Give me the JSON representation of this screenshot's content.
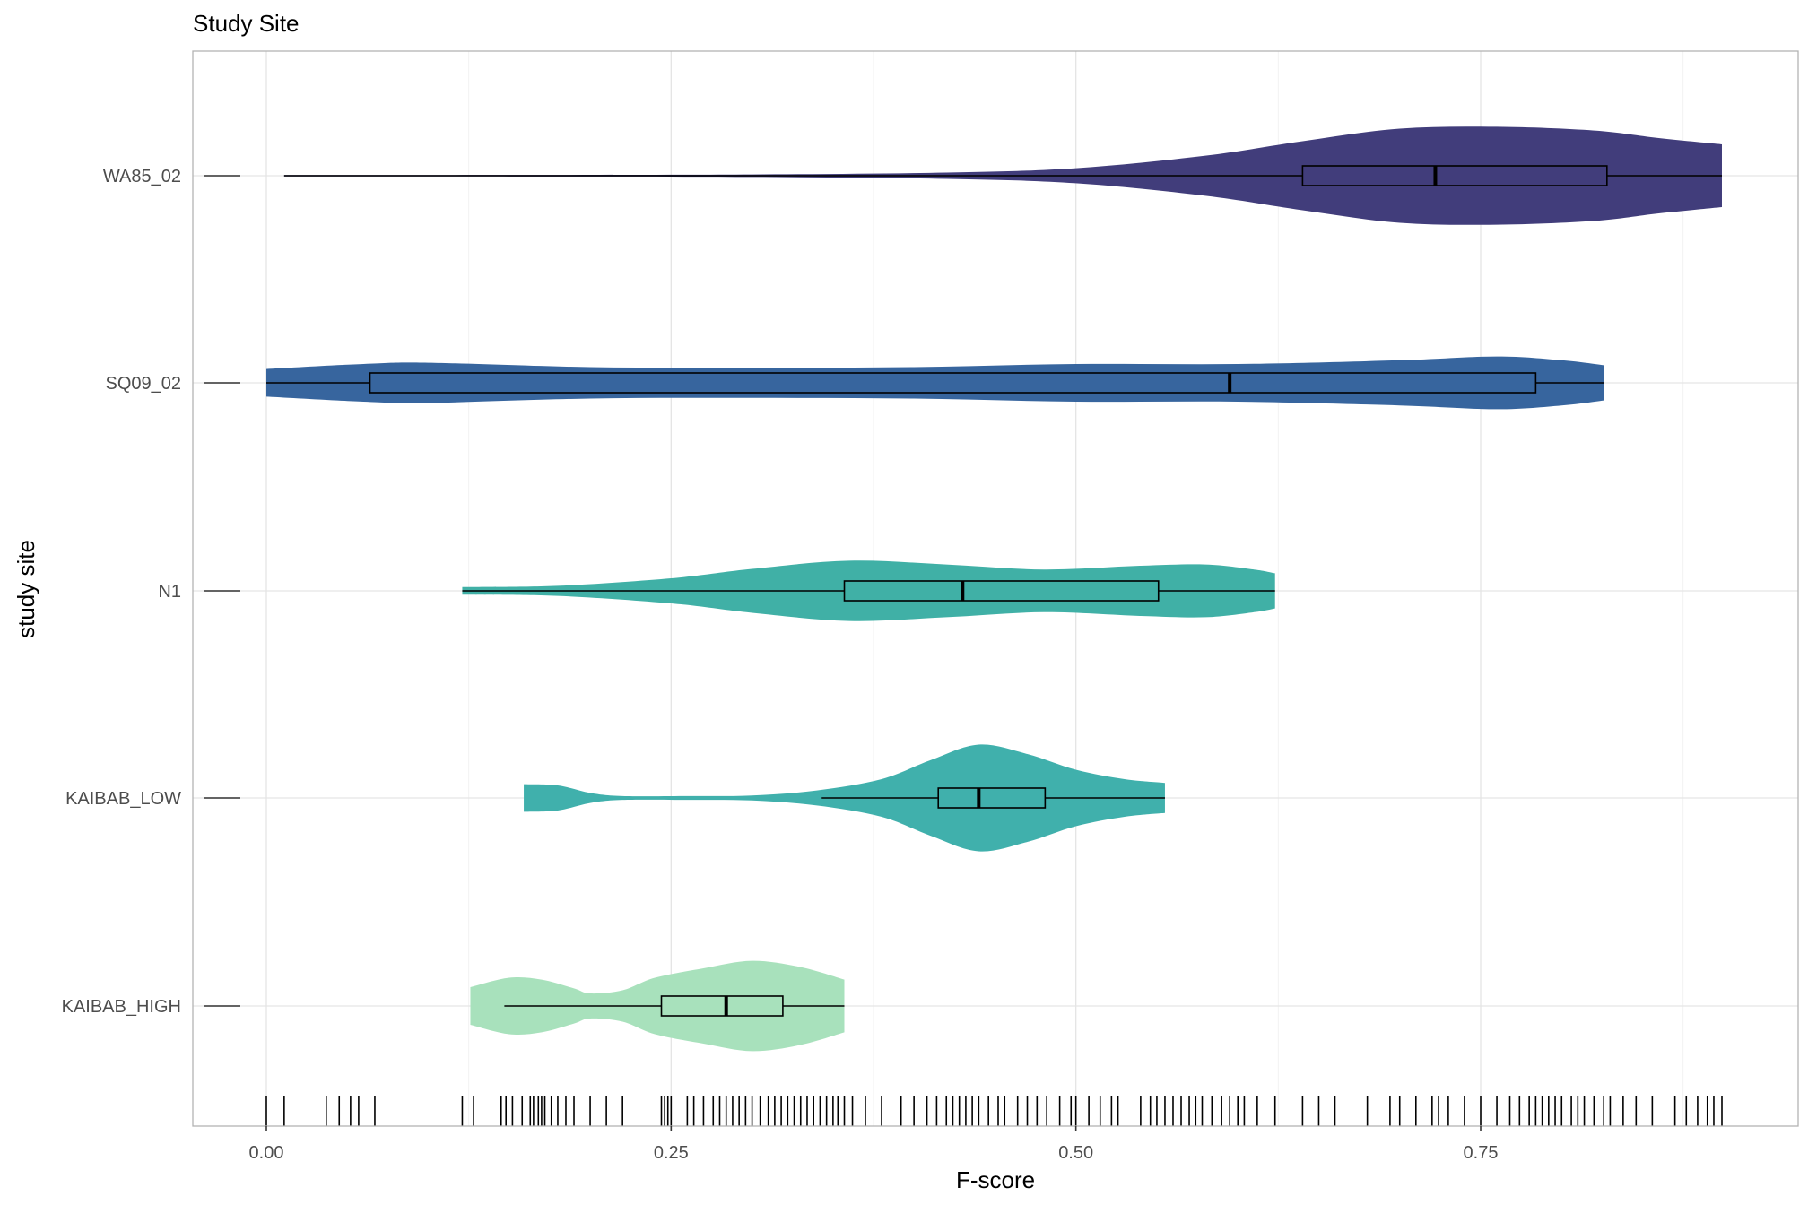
{
  "chart_data": {
    "type": "violin",
    "title": "Study Site",
    "xlabel": "F-score",
    "ylabel": "study site",
    "xlim": [
      -0.045,
      0.945
    ],
    "xticks": [
      "0.00",
      "0.25",
      "0.50",
      "0.75"
    ],
    "xtick_values": [
      0,
      0.25,
      0.5,
      0.75
    ],
    "grid": true,
    "categories": [
      "WA85_02",
      "SQ09_02",
      "N1",
      "KAIBAB_LOW",
      "KAIBAB_HIGH"
    ],
    "series": [
      {
        "name": "WA85_02",
        "color": "#413d7b",
        "box": {
          "min": 0.64,
          "q1": 0.64,
          "median": 0.722,
          "q3": 0.828,
          "max": 0.899
        },
        "whisker_low": 0.011,
        "range": [
          0.011,
          0.899
        ],
        "density": [
          [
            0.011,
            0.01
          ],
          [
            0.15,
            0.012
          ],
          [
            0.3,
            0.02
          ],
          [
            0.42,
            0.05
          ],
          [
            0.5,
            0.12
          ],
          [
            0.58,
            0.32
          ],
          [
            0.64,
            0.55
          ],
          [
            0.7,
            0.75
          ],
          [
            0.76,
            0.78
          ],
          [
            0.82,
            0.72
          ],
          [
            0.86,
            0.6
          ],
          [
            0.899,
            0.5
          ]
        ]
      },
      {
        "name": "SQ09_02",
        "color": "#37659e",
        "box": {
          "q1": 0.064,
          "median": 0.595,
          "q3": 0.784
        },
        "whisker_low": 0.0,
        "whisker_high": 0.826,
        "range": [
          0.0,
          0.826
        ],
        "density": [
          [
            0.0,
            0.22
          ],
          [
            0.06,
            0.3
          ],
          [
            0.1,
            0.32
          ],
          [
            0.2,
            0.25
          ],
          [
            0.3,
            0.24
          ],
          [
            0.4,
            0.25
          ],
          [
            0.5,
            0.3
          ],
          [
            0.6,
            0.3
          ],
          [
            0.7,
            0.36
          ],
          [
            0.76,
            0.42
          ],
          [
            0.8,
            0.36
          ],
          [
            0.826,
            0.28
          ]
        ]
      },
      {
        "name": "N1",
        "color": "#40b0a6",
        "box": {
          "q1": 0.357,
          "median": 0.43,
          "q3": 0.551
        },
        "whisker_low": 0.121,
        "whisker_high": 0.623,
        "range": [
          0.121,
          0.623
        ],
        "density": [
          [
            0.121,
            0.06
          ],
          [
            0.18,
            0.08
          ],
          [
            0.25,
            0.2
          ],
          [
            0.3,
            0.35
          ],
          [
            0.36,
            0.48
          ],
          [
            0.42,
            0.42
          ],
          [
            0.48,
            0.34
          ],
          [
            0.54,
            0.4
          ],
          [
            0.58,
            0.42
          ],
          [
            0.61,
            0.34
          ],
          [
            0.623,
            0.28
          ]
        ]
      },
      {
        "name": "KAIBAB_LOW",
        "color": "#40b0ac",
        "box": {
          "q1": 0.415,
          "median": 0.44,
          "q3": 0.481
        },
        "whisker_low": 0.343,
        "whisker_high": 0.555,
        "range": [
          0.159,
          0.555
        ],
        "density": [
          [
            0.159,
            0.22
          ],
          [
            0.18,
            0.2
          ],
          [
            0.2,
            0.08
          ],
          [
            0.22,
            0.03
          ],
          [
            0.26,
            0.03
          ],
          [
            0.3,
            0.04
          ],
          [
            0.34,
            0.12
          ],
          [
            0.38,
            0.3
          ],
          [
            0.41,
            0.6
          ],
          [
            0.44,
            0.85
          ],
          [
            0.47,
            0.7
          ],
          [
            0.5,
            0.45
          ],
          [
            0.53,
            0.3
          ],
          [
            0.555,
            0.24
          ]
        ]
      },
      {
        "name": "KAIBAB_HIGH",
        "color": "#a8e1bc",
        "box": {
          "q1": 0.244,
          "median": 0.284,
          "q3": 0.319
        },
        "whisker_low": 0.147,
        "whisker_high": 0.357,
        "range": [
          0.126,
          0.357
        ],
        "density": [
          [
            0.126,
            0.3
          ],
          [
            0.15,
            0.45
          ],
          [
            0.17,
            0.42
          ],
          [
            0.19,
            0.28
          ],
          [
            0.2,
            0.2
          ],
          [
            0.22,
            0.25
          ],
          [
            0.24,
            0.45
          ],
          [
            0.27,
            0.6
          ],
          [
            0.3,
            0.72
          ],
          [
            0.33,
            0.62
          ],
          [
            0.357,
            0.42
          ]
        ]
      }
    ],
    "rug": [
      0.0,
      0.011,
      0.037,
      0.045,
      0.052,
      0.057,
      0.067,
      0.121,
      0.128,
      0.145,
      0.148,
      0.152,
      0.158,
      0.163,
      0.165,
      0.168,
      0.17,
      0.172,
      0.176,
      0.18,
      0.185,
      0.19,
      0.2,
      0.21,
      0.22,
      0.244,
      0.246,
      0.248,
      0.25,
      0.26,
      0.264,
      0.27,
      0.276,
      0.28,
      0.284,
      0.288,
      0.292,
      0.296,
      0.3,
      0.305,
      0.31,
      0.314,
      0.318,
      0.322,
      0.326,
      0.33,
      0.334,
      0.338,
      0.342,
      0.346,
      0.35,
      0.353,
      0.357,
      0.362,
      0.37,
      0.38,
      0.392,
      0.4,
      0.408,
      0.414,
      0.42,
      0.424,
      0.428,
      0.432,
      0.436,
      0.44,
      0.446,
      0.452,
      0.456,
      0.464,
      0.47,
      0.476,
      0.482,
      0.49,
      0.497,
      0.5,
      0.508,
      0.515,
      0.522,
      0.526,
      0.54,
      0.546,
      0.55,
      0.555,
      0.56,
      0.565,
      0.57,
      0.574,
      0.578,
      0.584,
      0.59,
      0.595,
      0.6,
      0.604,
      0.612,
      0.623,
      0.64,
      0.65,
      0.66,
      0.68,
      0.694,
      0.7,
      0.71,
      0.72,
      0.724,
      0.73,
      0.74,
      0.75,
      0.76,
      0.768,
      0.774,
      0.78,
      0.784,
      0.788,
      0.792,
      0.796,
      0.8,
      0.806,
      0.81,
      0.814,
      0.82,
      0.826,
      0.83,
      0.838,
      0.846,
      0.856,
      0.87,
      0.877,
      0.884,
      0.89,
      0.894,
      0.899
    ]
  }
}
